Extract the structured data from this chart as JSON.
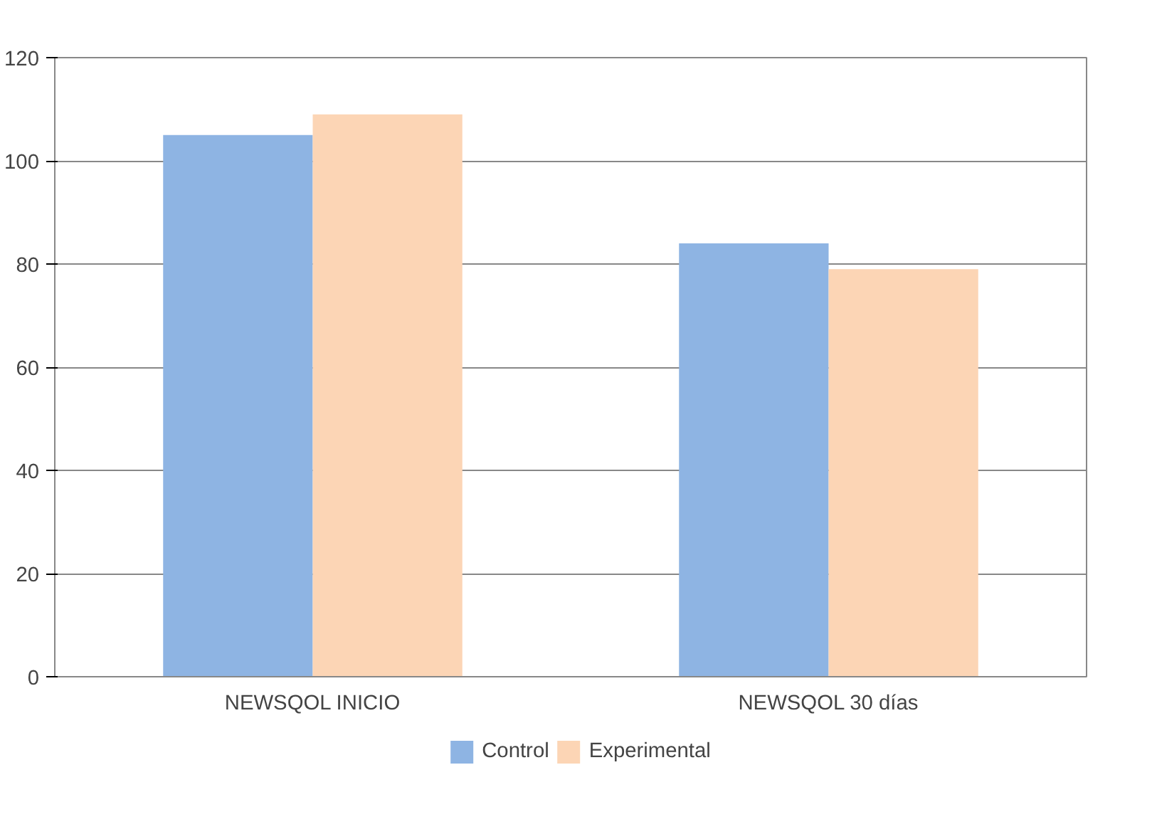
{
  "chart_data": {
    "type": "bar",
    "categories": [
      "NEWSQOL INICIO",
      "NEWSQOL 30 días"
    ],
    "series": [
      {
        "name": "Control",
        "color": "#8eb4e3",
        "values": [
          105,
          84
        ]
      },
      {
        "name": "Experimental",
        "color": "#fcd5b5",
        "values": [
          109,
          79
        ]
      }
    ],
    "ylim": [
      0,
      120
    ],
    "yticks": [
      0,
      20,
      40,
      60,
      80,
      100,
      120
    ],
    "grid": "y",
    "legend": "bottom"
  }
}
